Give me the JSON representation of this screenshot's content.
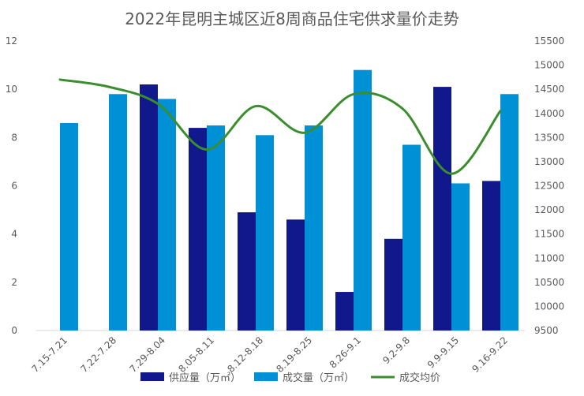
{
  "chart_data": {
    "type": "bar",
    "title": "2022年昆明主城区近8周商品住宅供求量价走势",
    "categories": [
      "7.15-7.21",
      "7.22-7.28",
      "7.29-8.04",
      "8.05-8.11",
      "8.12-8.18",
      "8.19-8.25",
      "8.26-9.1",
      "9.2-9.8",
      "9.9-9.15",
      "9.16-9.22"
    ],
    "series": [
      {
        "name": "供应量（万㎡）",
        "type": "bar",
        "axis": "left",
        "color": "#10188c",
        "values": [
          null,
          null,
          10.2,
          8.4,
          4.9,
          4.6,
          1.6,
          3.8,
          10.1,
          6.2
        ]
      },
      {
        "name": "成交量（万㎡）",
        "type": "bar",
        "axis": "left",
        "color": "#0090d5",
        "values": [
          8.6,
          9.8,
          9.6,
          8.5,
          8.1,
          8.5,
          10.8,
          7.7,
          6.1,
          9.8
        ]
      },
      {
        "name": "成交均价",
        "type": "line",
        "axis": "right",
        "color": "#3b8d2e",
        "values": [
          14700,
          14550,
          14200,
          13250,
          14150,
          13600,
          14400,
          14100,
          12750,
          14050
        ]
      }
    ],
    "y_left": {
      "min": 0,
      "max": 12,
      "ticks": [
        0,
        2,
        4,
        6,
        8,
        10,
        12
      ]
    },
    "y_right": {
      "min": 9500,
      "max": 15500,
      "ticks": [
        9500,
        10000,
        10500,
        11000,
        11500,
        12000,
        12500,
        13000,
        13500,
        14000,
        14500,
        15000,
        15500
      ]
    },
    "grid": false,
    "legend": "bottom"
  }
}
